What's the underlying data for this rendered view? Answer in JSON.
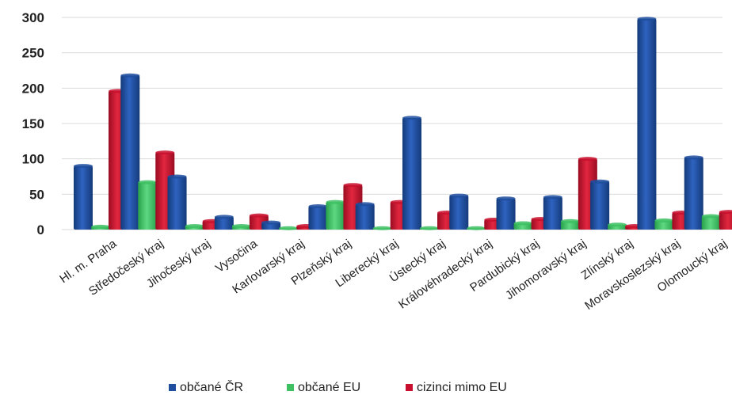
{
  "chart_data": {
    "type": "bar",
    "title": "",
    "xlabel": "",
    "ylabel": "",
    "ylim": [
      0,
      300
    ],
    "yticks": [
      0,
      50,
      100,
      150,
      200,
      250,
      300
    ],
    "grid": true,
    "legend_position": "bottom",
    "categories": [
      "Hl. m. Praha",
      "Středočeský kraj",
      "Jihočeský kraj",
      "Vysočina",
      "Karlovarský kraj",
      "Plzeňský kraj",
      "Liberecký kraj",
      "Ústecký kraj",
      "Královéhradecký kraj",
      "Pardubický kraj",
      "Jihomoravský kraj",
      "Zlínský kraj",
      "Moravskoslezský kraj",
      "Olomoucký kraj"
    ],
    "series": [
      {
        "name": "občané ČR",
        "color": "#1f4e9e",
        "values": [
          90,
          218,
          75,
          18,
          10,
          33,
          36,
          158,
          48,
          44,
          46,
          68,
          298,
          102
        ]
      },
      {
        "name": "občané EU",
        "color": "#3cc061",
        "values": [
          4,
          67,
          5,
          5,
          2,
          39,
          2,
          2,
          2,
          9,
          12,
          7,
          13,
          19
        ]
      },
      {
        "name": "cizinci mimo EU",
        "color": "#c8102e",
        "values": [
          196,
          109,
          12,
          20,
          5,
          63,
          39,
          24,
          14,
          15,
          100,
          5,
          24,
          25
        ]
      }
    ]
  }
}
